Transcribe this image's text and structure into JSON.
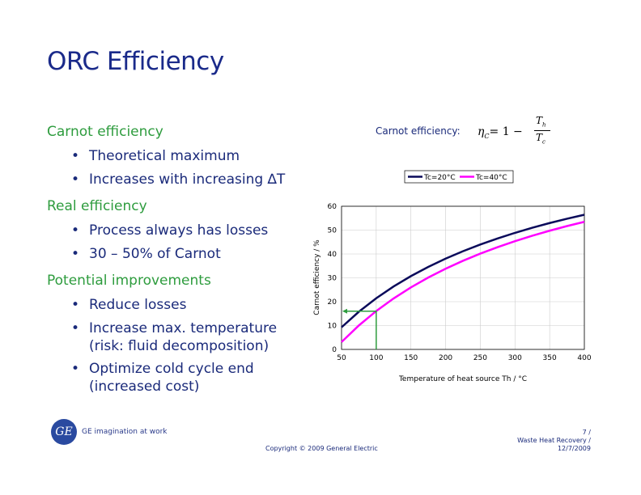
{
  "title": "ORC Efficiency",
  "sections": [
    {
      "heading": "Carnot efficiency",
      "bullets": [
        "Theoretical maximum",
        "Increases with increasing ∆T"
      ]
    },
    {
      "heading": "Real efficiency",
      "bullets": [
        "Process always has losses",
        "30 – 50% of Carnot"
      ]
    },
    {
      "heading": "Potential improvements",
      "bullets": [
        "Reduce losses",
        "Increase max. temperature (risk: fluid decomposition)",
        "Optimize cold cycle end (increased cost)"
      ]
    }
  ],
  "formula": {
    "label": "Carnot efficiency:",
    "lhs": "η",
    "lhs_sub": "C",
    "eq": "= 1 −",
    "num": "T",
    "num_sub": "h",
    "den": "T",
    "den_sub": "c"
  },
  "chart_data": {
    "type": "line",
    "xlabel": "Temperature of heat source Th / °C",
    "ylabel": "Carnot efficiency / %",
    "xlim": [
      50,
      400
    ],
    "ylim": [
      0,
      60
    ],
    "xticks": [
      50,
      100,
      150,
      200,
      250,
      300,
      350,
      400
    ],
    "yticks": [
      0,
      10,
      20,
      30,
      40,
      50,
      60
    ],
    "grid": true,
    "legend": "top",
    "x": [
      50,
      75,
      100,
      125,
      150,
      175,
      200,
      225,
      250,
      275,
      300,
      325,
      350,
      375,
      400
    ],
    "series": [
      {
        "name": "Tc=20°C",
        "color": "#0a0a5a",
        "values": [
          9.28,
          15.8,
          21.44,
          26.37,
          30.72,
          34.59,
          38.04,
          41.15,
          43.96,
          46.52,
          48.85,
          50.99,
          52.96,
          54.77,
          56.45
        ]
      },
      {
        "name": "Tc=40°C",
        "color": "#ff00ff",
        "values": [
          3.09,
          10.05,
          16.08,
          21.35,
          25.99,
          30.12,
          33.82,
          37.14,
          40.14,
          42.87,
          45.36,
          47.65,
          49.75,
          51.69,
          53.48
        ]
      }
    ],
    "annotation": {
      "color": "#2e9c3e",
      "x": 100,
      "y": 16
    }
  },
  "footer": {
    "logo_text": "GE imagination at work",
    "copyright": "Copyright © 2009 General Electric",
    "page": "7 /",
    "doc": "Waste Heat Recovery /",
    "date": "12/7/2009"
  }
}
